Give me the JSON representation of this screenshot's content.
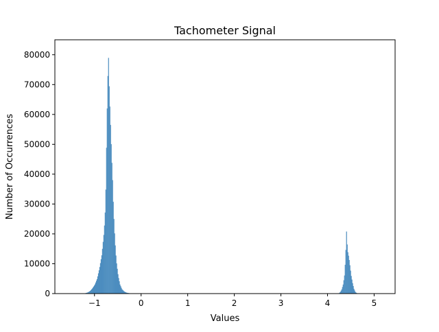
{
  "chart_data": {
    "type": "bar",
    "title": "Tachometer Signal",
    "xlabel": "Values",
    "ylabel": "Number of Occurrences",
    "xlim": [
      -1.85,
      5.45
    ],
    "ylim": [
      0,
      85000
    ],
    "xticks": [
      -1,
      0,
      1,
      2,
      3,
      4,
      5
    ],
    "xtick_labels": [
      "−1",
      "0",
      "1",
      "2",
      "3",
      "4",
      "5"
    ],
    "yticks": [
      0,
      10000,
      20000,
      30000,
      40000,
      50000,
      60000,
      70000,
      80000
    ],
    "ytick_labels": [
      "0",
      "10000",
      "20000",
      "30000",
      "40000",
      "50000",
      "60000",
      "70000",
      "80000"
    ],
    "grid": false,
    "legend": "none",
    "bar_color": "#4c8dbf",
    "bins": [
      {
        "x": -1.2,
        "y": 150
      },
      {
        "x": -1.15,
        "y": 400
      },
      {
        "x": -1.1,
        "y": 900
      },
      {
        "x": -1.05,
        "y": 1800
      },
      {
        "x": -1.0,
        "y": 3000
      },
      {
        "x": -0.95,
        "y": 5000
      },
      {
        "x": -0.9,
        "y": 8500
      },
      {
        "x": -0.85,
        "y": 13000
      },
      {
        "x": -0.8,
        "y": 21000
      },
      {
        "x": -0.77,
        "y": 30000
      },
      {
        "x": -0.74,
        "y": 59000
      },
      {
        "x": -0.72,
        "y": 74000
      },
      {
        "x": -0.71,
        "y": 81500
      },
      {
        "x": -0.7,
        "y": 73000
      },
      {
        "x": -0.68,
        "y": 63500
      },
      {
        "x": -0.66,
        "y": 55000
      },
      {
        "x": -0.64,
        "y": 46000
      },
      {
        "x": -0.62,
        "y": 38000
      },
      {
        "x": -0.6,
        "y": 28000
      },
      {
        "x": -0.57,
        "y": 18000
      },
      {
        "x": -0.54,
        "y": 11000
      },
      {
        "x": -0.5,
        "y": 6000
      },
      {
        "x": -0.46,
        "y": 3000
      },
      {
        "x": -0.42,
        "y": 1500
      },
      {
        "x": -0.37,
        "y": 700
      },
      {
        "x": -0.32,
        "y": 300
      },
      {
        "x": -0.26,
        "y": 120
      },
      {
        "x": -0.2,
        "y": 40
      },
      {
        "x": 4.24,
        "y": 150
      },
      {
        "x": 4.27,
        "y": 600
      },
      {
        "x": 4.3,
        "y": 1500
      },
      {
        "x": 4.33,
        "y": 3200
      },
      {
        "x": 4.36,
        "y": 6500
      },
      {
        "x": 4.38,
        "y": 12500
      },
      {
        "x": 4.4,
        "y": 21000
      },
      {
        "x": 4.42,
        "y": 14500
      },
      {
        "x": 4.44,
        "y": 13000
      },
      {
        "x": 4.46,
        "y": 11000
      },
      {
        "x": 4.48,
        "y": 8500
      },
      {
        "x": 4.5,
        "y": 6000
      },
      {
        "x": 4.53,
        "y": 3500
      },
      {
        "x": 4.56,
        "y": 1500
      },
      {
        "x": 4.59,
        "y": 500
      },
      {
        "x": 4.62,
        "y": 150
      }
    ]
  }
}
